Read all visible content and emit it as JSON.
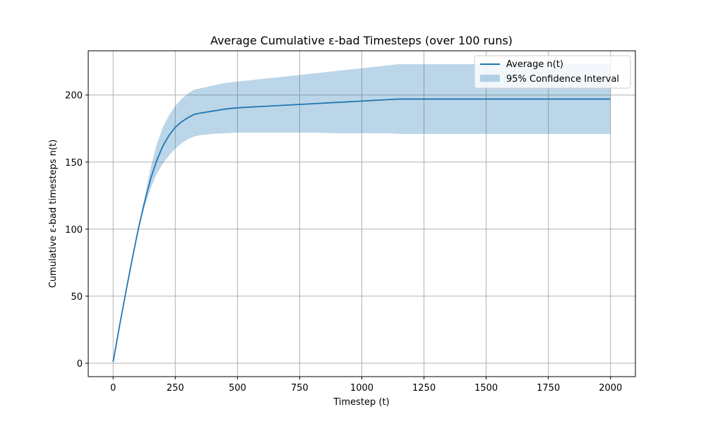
{
  "chart_data": {
    "type": "line",
    "title": "Average Cumulative ε-bad Timesteps (over 100 runs)",
    "xlabel": "Timestep (t)",
    "ylabel": "Cumulative ε-bad timesteps n(t)",
    "xlim": [
      -100,
      2100
    ],
    "ylim": [
      -10,
      233
    ],
    "xticks": [
      0,
      250,
      500,
      750,
      1000,
      1250,
      1500,
      1750,
      2000
    ],
    "yticks": [
      0,
      50,
      100,
      150,
      200
    ],
    "grid": true,
    "legend_position": "top-right",
    "colors": {
      "line": "#1f77b4",
      "band": "#1f77b4",
      "band_opacity": 0.3,
      "grid": "#b0b0b0"
    },
    "series": [
      {
        "name": "Average n(t)",
        "kind": "line",
        "x": [
          0,
          25,
          50,
          75,
          100,
          125,
          150,
          175,
          200,
          225,
          250,
          275,
          300,
          325,
          350,
          400,
          450,
          500,
          600,
          700,
          800,
          900,
          1000,
          1100,
          1150,
          1200,
          1400,
          1600,
          1800,
          2000
        ],
        "y": [
          1,
          27,
          52,
          76,
          99,
          119,
          137,
          151,
          162,
          170,
          176,
          180,
          183,
          185.5,
          186.5,
          188,
          189.5,
          190.5,
          191.5,
          192.5,
          193.5,
          194.5,
          195.5,
          196.5,
          197,
          197,
          197,
          197,
          197,
          197
        ]
      },
      {
        "name": "95% Confidence Interval",
        "kind": "band",
        "x": [
          0,
          25,
          50,
          75,
          100,
          125,
          150,
          175,
          200,
          225,
          250,
          275,
          300,
          325,
          350,
          400,
          450,
          500,
          600,
          700,
          800,
          900,
          1000,
          1100,
          1150,
          1200,
          1400,
          1600,
          1800,
          2000
        ],
        "lower": [
          1,
          27,
          52,
          76,
          98,
          116,
          130,
          141,
          149,
          155,
          160,
          164,
          167,
          169,
          170,
          171,
          171.5,
          172,
          172,
          172,
          172,
          171.5,
          171.5,
          171.5,
          171,
          171,
          171,
          171,
          171,
          171
        ],
        "upper": [
          1,
          27,
          52,
          77,
          101,
          122,
          145,
          163,
          176,
          185,
          192,
          197,
          201,
          204,
          205,
          207,
          209,
          210,
          212,
          214,
          216,
          218,
          220,
          222,
          223,
          223,
          223,
          223,
          223,
          223
        ]
      }
    ]
  }
}
